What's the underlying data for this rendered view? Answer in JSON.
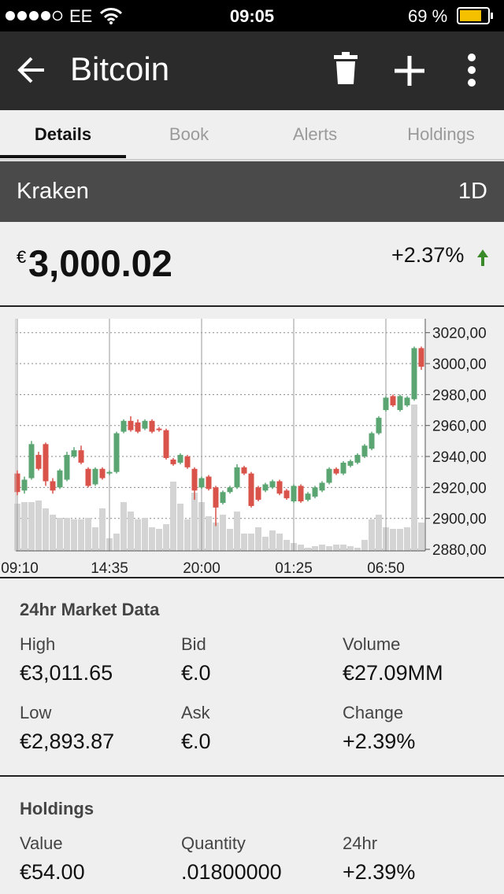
{
  "status_bar": {
    "carrier": "EE",
    "time": "09:05",
    "battery": "69 %"
  },
  "header": {
    "title": "Bitcoin"
  },
  "tabs": [
    "Details",
    "Book",
    "Alerts",
    "Holdings"
  ],
  "exchange": {
    "name": "Kraken",
    "interval": "1D"
  },
  "price": {
    "currency": "€",
    "value": "3,000.02",
    "change": "+2.37%"
  },
  "chart_data": {
    "type": "candlestick",
    "categories": [
      "09:10",
      null,
      null,
      null,
      null,
      null,
      null,
      null,
      null,
      null,
      null,
      null,
      null,
      "14:35",
      null,
      null,
      null,
      null,
      null,
      null,
      null,
      null,
      null,
      null,
      null,
      null,
      "20:00",
      null,
      null,
      null,
      null,
      null,
      null,
      null,
      null,
      null,
      null,
      null,
      null,
      "01:25",
      null,
      null,
      null,
      null,
      null,
      null,
      null,
      null,
      null,
      null,
      null,
      null,
      "06:50",
      null,
      null,
      null,
      null,
      null
    ],
    "open": [
      2929,
      2918,
      2926,
      2941,
      2948,
      2924,
      2920,
      2925,
      2940,
      2944,
      2932,
      2922,
      2932,
      2929,
      2930,
      2956,
      2963,
      2962,
      2958,
      2963,
      2958,
      2957,
      2938,
      2936,
      2940,
      2932,
      2920,
      2927,
      2920,
      2910,
      2917,
      2920,
      2933,
      2929,
      2920,
      2918,
      2920,
      2924,
      2918,
      2911,
      2921,
      2912,
      2914,
      2918,
      2923,
      2932,
      2929,
      2934,
      2936,
      2940,
      2945,
      2955,
      2970,
      2979,
      2970,
      2973,
      2977,
      3010
    ],
    "high": [
      2931,
      2927,
      2950,
      2943,
      2949,
      2926,
      2932,
      2943,
      2946,
      2947,
      2933,
      2933,
      2933,
      2931,
      2956,
      2964,
      2966,
      2964,
      2964,
      2964,
      2959,
      2958,
      2939,
      2942,
      2941,
      2933,
      2927,
      2928,
      2921,
      2918,
      2921,
      2935,
      2934,
      2930,
      2921,
      2923,
      2925,
      2925,
      2919,
      2922,
      2922,
      2917,
      2921,
      2924,
      2933,
      2933,
      2937,
      2938,
      2942,
      2948,
      2956,
      2966,
      2979,
      2980,
      2980,
      2979,
      3011,
      3011
    ],
    "low": [
      2915,
      2916,
      2925,
      2931,
      2921,
      2916,
      2919,
      2924,
      2939,
      2935,
      2920,
      2921,
      2925,
      2928,
      2929,
      2955,
      2956,
      2955,
      2957,
      2955,
      2956,
      2938,
      2934,
      2935,
      2932,
      2912,
      2919,
      2918,
      2895,
      2909,
      2916,
      2919,
      2928,
      2907,
      2911,
      2917,
      2919,
      2915,
      2912,
      2910,
      2910,
      2911,
      2913,
      2917,
      2922,
      2928,
      2928,
      2933,
      2935,
      2939,
      2944,
      2954,
      2969,
      2972,
      2969,
      2972,
      2976,
      2996
    ],
    "close": [
      2917,
      2925,
      2948,
      2932,
      2924,
      2918,
      2931,
      2941,
      2944,
      2936,
      2921,
      2932,
      2926,
      2930,
      2955,
      2963,
      2957,
      2956,
      2963,
      2956,
      2957,
      2939,
      2935,
      2941,
      2933,
      2918,
      2926,
      2919,
      2907,
      2917,
      2920,
      2933,
      2929,
      2908,
      2912,
      2922,
      2924,
      2916,
      2913,
      2921,
      2911,
      2916,
      2920,
      2923,
      2932,
      2929,
      2936,
      2937,
      2941,
      2947,
      2955,
      2965,
      2978,
      2973,
      2979,
      2978,
      3010,
      2998
    ],
    "volume": [
      60,
      62,
      62,
      64,
      54,
      46,
      42,
      42,
      40,
      40,
      42,
      30,
      54,
      16,
      22,
      62,
      50,
      40,
      42,
      30,
      28,
      34,
      88,
      60,
      40,
      74,
      62,
      44,
      36,
      46,
      28,
      50,
      22,
      22,
      30,
      18,
      26,
      22,
      14,
      10,
      8,
      4,
      6,
      8,
      6,
      8,
      8,
      6,
      4,
      14,
      40,
      46,
      30,
      28,
      28,
      30,
      186,
      36
    ],
    "up_color": "#5aa572",
    "down_color": "#d9534a",
    "volume_color": "#d4d4d4",
    "ylim": [
      2879,
      3029
    ],
    "yticks": [
      {
        "value": 2880,
        "label": "2880,00"
      },
      {
        "value": 2900,
        "label": "2900,00"
      },
      {
        "value": 2920,
        "label": "2920,00"
      },
      {
        "value": 2940,
        "label": "2940,00"
      },
      {
        "value": 2960,
        "label": "2960,00"
      },
      {
        "value": 2980,
        "label": "2980,00"
      },
      {
        "value": 3000,
        "label": "3000,00"
      },
      {
        "value": 3020,
        "label": "3020,00"
      }
    ],
    "grid": true
  },
  "market_data": {
    "title": "24hr Market Data",
    "items": [
      {
        "label": "High",
        "value": "€3,011.65"
      },
      {
        "label": "Bid",
        "value": "€.0"
      },
      {
        "label": "Volume",
        "value": "€27.09MM"
      },
      {
        "label": "Low",
        "value": "€2,893.87"
      },
      {
        "label": "Ask",
        "value": "€.0"
      },
      {
        "label": "Change",
        "value": "+2.39%"
      }
    ]
  },
  "holdings": {
    "title": "Holdings",
    "items": [
      {
        "label": "Value",
        "value": "€54.00"
      },
      {
        "label": "Quantity",
        "value": ".01800000"
      },
      {
        "label": "24hr",
        "value": "+2.39%"
      }
    ]
  }
}
